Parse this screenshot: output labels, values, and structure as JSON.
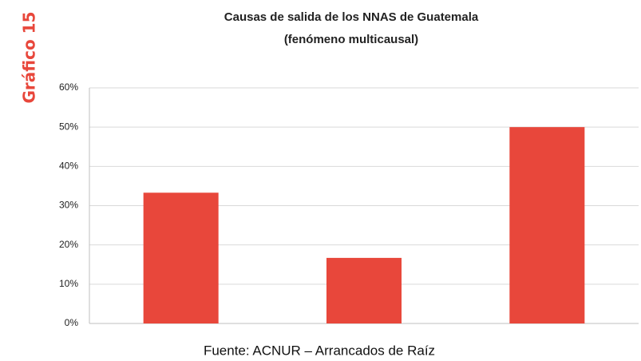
{
  "chart_data": {
    "type": "bar",
    "title": "Causas de salida de los NNAS de Guatemala",
    "subtitle": "(fenómeno multicausal)",
    "label": "Gráfico 15",
    "source": "Fuente: ACNUR – Arrancados de Raíz",
    "categories": [
      null,
      null,
      null
    ],
    "values": [
      33.3,
      16.7,
      50
    ],
    "color": "#e8473b",
    "ylim": [
      0,
      60
    ],
    "yticks": [
      {
        "value": 0,
        "label": "0%"
      },
      {
        "value": 10,
        "label": "10%"
      },
      {
        "value": 20,
        "label": "20%"
      },
      {
        "value": 30,
        "label": "30%"
      },
      {
        "value": 40,
        "label": "40%"
      },
      {
        "value": 50,
        "label": "50%"
      },
      {
        "value": 60,
        "label": "60%"
      }
    ],
    "grid": true
  }
}
